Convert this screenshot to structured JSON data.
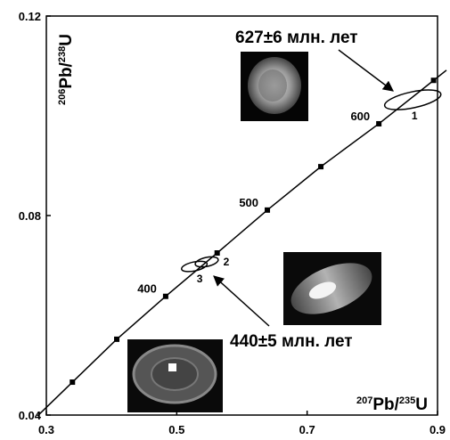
{
  "chart_data": {
    "type": "concordia",
    "x_label": {
      "sup1": "207",
      "main1": "Pb/",
      "sup2": "235",
      "main2": "U"
    },
    "y_label": {
      "sup1": "206",
      "main1": "Pb/",
      "sup2": "238",
      "main2": "U"
    },
    "xlim": [
      0.3,
      0.9
    ],
    "ylim": [
      0.04,
      0.12
    ],
    "xticks": [
      0.3,
      0.5,
      0.7,
      0.9
    ],
    "yticks": [
      0.04,
      0.08,
      0.12
    ],
    "color": "#000000",
    "x": [
      0.34,
      0.408,
      0.483,
      0.562,
      0.639,
      0.721,
      0.81,
      0.894
    ],
    "values": [
      0.0466,
      0.0552,
      0.0638,
      0.0725,
      0.0811,
      0.0898,
      0.0984,
      0.1071
    ],
    "point_labels": [
      null,
      null,
      "400",
      null,
      "500",
      null,
      "600",
      null
    ],
    "ellipses": [
      {
        "label": "1",
        "x": 0.862,
        "y": 0.1032,
        "rx": 0.044,
        "ry": 0.0016
      },
      {
        "label": "2",
        "x": 0.546,
        "y": 0.0707,
        "rx": 0.018,
        "ry": 0.0009
      },
      {
        "label": "3",
        "x": 0.527,
        "y": 0.0698,
        "rx": 0.02,
        "ry": 0.0009
      }
    ],
    "annotations": [
      "627±6 млн. лет",
      "440±5 млн. лет"
    ]
  }
}
